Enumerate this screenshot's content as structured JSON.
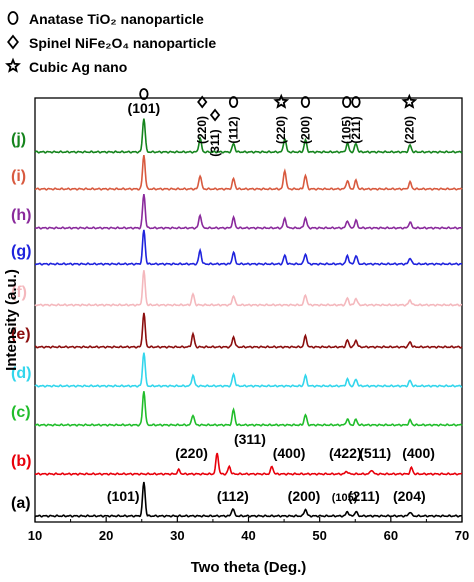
{
  "legend": [
    {
      "symbol": "circle-icon",
      "text": "Anatase TiO₂ nanoparticle"
    },
    {
      "symbol": "diamond-icon",
      "text": "Spinel NiFe₂O₄ nanoparticle"
    },
    {
      "symbol": "star-icon",
      "text": "Cubic Ag nano"
    }
  ],
  "chart_data": {
    "type": "line",
    "xlabel": "Two theta (Deg.)",
    "ylabel": "Intensity (a.u.)",
    "xlim": [
      10,
      70
    ],
    "xticks": [
      10,
      20,
      30,
      40,
      50,
      60,
      70
    ],
    "y_ticks_shown": false,
    "grid": false,
    "legend_placement": "top-left",
    "series": [
      {
        "name": "(a)",
        "color": "#000000",
        "peaks": [
          [
            25.3,
            1.0
          ],
          [
            37.8,
            0.22
          ],
          [
            48.0,
            0.2
          ],
          [
            53.9,
            0.13
          ],
          [
            55.1,
            0.13
          ],
          [
            62.7,
            0.12
          ]
        ]
      },
      {
        "name": "(b)",
        "color": "#e8000b",
        "peaks": [
          [
            30.2,
            0.12
          ],
          [
            35.6,
            0.62
          ],
          [
            37.3,
            0.22
          ],
          [
            43.3,
            0.22
          ],
          [
            53.8,
            0.08
          ],
          [
            57.3,
            0.12
          ],
          [
            62.9,
            0.18
          ]
        ]
      },
      {
        "name": "(c)",
        "color": "#21bd2b",
        "peaks": [
          [
            25.3,
            1.0
          ],
          [
            32.2,
            0.3
          ],
          [
            37.9,
            0.45
          ],
          [
            48.0,
            0.3
          ],
          [
            53.9,
            0.18
          ],
          [
            55.1,
            0.16
          ],
          [
            62.7,
            0.14
          ]
        ]
      },
      {
        "name": "(d)",
        "color": "#33d6ec",
        "peaks": [
          [
            25.3,
            1.0
          ],
          [
            32.2,
            0.32
          ],
          [
            37.9,
            0.35
          ],
          [
            48.0,
            0.3
          ],
          [
            53.9,
            0.2
          ],
          [
            55.1,
            0.2
          ],
          [
            62.7,
            0.16
          ]
        ]
      },
      {
        "name": "(e)",
        "color": "#8b0e0e",
        "peaks": [
          [
            25.3,
            1.0
          ],
          [
            32.2,
            0.38
          ],
          [
            37.9,
            0.3
          ],
          [
            48.0,
            0.32
          ],
          [
            53.9,
            0.2
          ],
          [
            55.1,
            0.2
          ],
          [
            62.7,
            0.15
          ]
        ]
      },
      {
        "name": "(f)",
        "color": "#f4b8bd",
        "peaks": [
          [
            25.3,
            1.0
          ],
          [
            32.2,
            0.32
          ],
          [
            37.9,
            0.28
          ],
          [
            48.0,
            0.3
          ],
          [
            53.9,
            0.2
          ],
          [
            55.1,
            0.2
          ],
          [
            62.7,
            0.15
          ]
        ]
      },
      {
        "name": "(g)",
        "color": "#1f23dd",
        "peaks": [
          [
            25.3,
            1.0
          ],
          [
            33.2,
            0.4
          ],
          [
            37.9,
            0.35
          ],
          [
            45.1,
            0.25
          ],
          [
            48.0,
            0.3
          ],
          [
            53.9,
            0.25
          ],
          [
            55.1,
            0.25
          ],
          [
            62.7,
            0.18
          ]
        ]
      },
      {
        "name": "(h)",
        "color": "#8a2a9c",
        "peaks": [
          [
            25.3,
            1.0
          ],
          [
            33.2,
            0.38
          ],
          [
            37.9,
            0.3
          ],
          [
            45.1,
            0.28
          ],
          [
            48.0,
            0.3
          ],
          [
            53.9,
            0.22
          ],
          [
            55.1,
            0.22
          ],
          [
            62.7,
            0.18
          ]
        ]
      },
      {
        "name": "(i)",
        "color": "#d85a3f",
        "peaks": [
          [
            25.3,
            1.0
          ],
          [
            33.2,
            0.4
          ],
          [
            37.9,
            0.3
          ],
          [
            45.1,
            0.55
          ],
          [
            48.0,
            0.4
          ],
          [
            53.9,
            0.25
          ],
          [
            55.1,
            0.25
          ],
          [
            62.7,
            0.2
          ]
        ]
      },
      {
        "name": "(j)",
        "color": "#15841d",
        "peaks": [
          [
            25.3,
            1.0
          ],
          [
            33.2,
            0.4
          ],
          [
            37.9,
            0.25
          ],
          [
            45.1,
            0.4
          ],
          [
            48.0,
            0.35
          ],
          [
            53.9,
            0.25
          ],
          [
            55.1,
            0.25
          ],
          [
            62.7,
            0.2
          ]
        ]
      }
    ],
    "annotations_top": [
      {
        "x": 25.3,
        "label": "(101)",
        "symbol": "circle"
      },
      {
        "x": 33.5,
        "label": "(220)",
        "symbol": "diamond"
      },
      {
        "x": 35.3,
        "label": "(311)",
        "symbol": "diamond"
      },
      {
        "x": 37.9,
        "label": "(112)",
        "symbol": "circle"
      },
      {
        "x": 44.6,
        "label": "(220)",
        "symbol": "star"
      },
      {
        "x": 48.0,
        "label": "(200)",
        "symbol": "circle"
      },
      {
        "x": 53.8,
        "label": "(105)",
        "symbol": "circle"
      },
      {
        "x": 55.1,
        "label": "(211)",
        "symbol": "circle"
      },
      {
        "x": 62.6,
        "label": "(220)",
        "symbol": "star"
      }
    ],
    "annotations_b": [
      {
        "x": 32.0,
        "label": "(220)"
      },
      {
        "x": 40.2,
        "label": "(311)"
      },
      {
        "x": 45.7,
        "label": "(400)"
      },
      {
        "x": 53.6,
        "label": "(422)"
      },
      {
        "x": 57.8,
        "label": "(511)"
      },
      {
        "x": 63.9,
        "label": "(400)"
      }
    ],
    "annotations_a": [
      {
        "x": 22.4,
        "label": "(101)"
      },
      {
        "x": 37.8,
        "label": "(112)"
      },
      {
        "x": 47.8,
        "label": "(200)"
      },
      {
        "x": 53.5,
        "label": "(105)"
      },
      {
        "x": 56.2,
        "label": "(211)"
      },
      {
        "x": 62.6,
        "label": "(204)"
      }
    ]
  }
}
